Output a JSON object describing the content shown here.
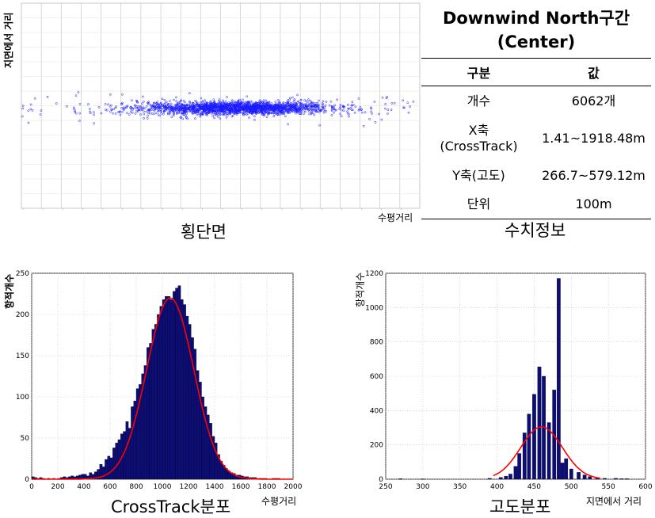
{
  "info_table": {
    "title_line1": "Downwind North구간",
    "title_line2": "(Center)",
    "header": {
      "col1": "구분",
      "col2": "값"
    },
    "rows": [
      {
        "label": "개수",
        "value": "6062개"
      },
      {
        "label": "X축\n(CrossTrack)",
        "value": "1.41~1918.48m"
      },
      {
        "label": "Y축(고도)",
        "value": "266.7~579.12m"
      },
      {
        "label": "단위",
        "value": "100m"
      }
    ]
  },
  "captions": {
    "scatter": "횡단면",
    "table": "수치정보",
    "hist_cross": "CrossTrack분포",
    "hist_alt": "고도분포"
  },
  "axis_labels": {
    "scatter_x": "수평거리",
    "scatter_y": "지면에서 거리",
    "hist_cross_x": "수평거리",
    "hist_cross_y": "항적개수",
    "hist_alt_x": "지면에서 거리",
    "hist_alt_y": "항적개수"
  },
  "colors": {
    "bar_fill": "#0d0d7a",
    "fit_curve": "#ff0000",
    "scatter_points": "#1a1aff",
    "grid": "#bfbfbf"
  },
  "chart_data": [
    {
      "type": "scatter",
      "xlabel": "수평거리",
      "ylabel": "지면에서 거리",
      "xlim": [
        0,
        1950
      ],
      "ylim": [
        0,
        900
      ],
      "grid": true,
      "point_count": 6062,
      "x_range": [
        1.41,
        1918.48
      ],
      "y_range": [
        266.7,
        579.12
      ],
      "center": {
        "x": 1050,
        "y": 440
      }
    },
    {
      "type": "bar",
      "xlabel": "수평거리",
      "ylabel": "항적개수",
      "xlim": [
        0,
        2000
      ],
      "ylim": [
        0,
        250
      ],
      "x_ticks": [
        0,
        200,
        400,
        600,
        800,
        1000,
        1200,
        1400,
        1600,
        1800,
        2000
      ],
      "y_ticks": [
        0,
        50,
        100,
        150,
        200,
        250
      ],
      "grid": true,
      "bin_width": 20,
      "bin_start": 0,
      "values": [
        3,
        2,
        1,
        2,
        1,
        0,
        1,
        0,
        1,
        0,
        1,
        2,
        3,
        2,
        3,
        4,
        3,
        4,
        5,
        6,
        6,
        4,
        8,
        6,
        9,
        12,
        18,
        15,
        24,
        28,
        26,
        38,
        44,
        48,
        55,
        58,
        70,
        62,
        88,
        95,
        110,
        115,
        128,
        138,
        160,
        165,
        182,
        188,
        200,
        210,
        218,
        222,
        222,
        218,
        228,
        232,
        235,
        218,
        212,
        198,
        188,
        172,
        158,
        132,
        118,
        100,
        88,
        78,
        68,
        52,
        44,
        30,
        22,
        17,
        13,
        10,
        8,
        7,
        5,
        5,
        4,
        3,
        3,
        2,
        2,
        2,
        1,
        1,
        1,
        1,
        0,
        0,
        1,
        1,
        1,
        0
      ],
      "fit": {
        "type": "normal",
        "mean": 1060,
        "peak": 220,
        "sd": 180
      }
    },
    {
      "type": "bar",
      "xlabel": "지면에서 거리",
      "ylabel": "항적개수",
      "xlim": [
        250,
        600
      ],
      "ylim": [
        0,
        1200
      ],
      "x_ticks": [
        250,
        300,
        350,
        400,
        450,
        500,
        550,
        600
      ],
      "y_ticks": [
        0,
        200,
        400,
        600,
        800,
        1000,
        1200
      ],
      "grid": true,
      "bars": [
        {
          "x": 270,
          "y": 3
        },
        {
          "x": 300,
          "y": 2
        },
        {
          "x": 390,
          "y": 5
        },
        {
          "x": 405,
          "y": 10
        },
        {
          "x": 412,
          "y": 18
        },
        {
          "x": 418,
          "y": 30
        },
        {
          "x": 425,
          "y": 75
        },
        {
          "x": 430,
          "y": 150
        },
        {
          "x": 437,
          "y": 270
        },
        {
          "x": 443,
          "y": 380
        },
        {
          "x": 450,
          "y": 495
        },
        {
          "x": 457,
          "y": 655
        },
        {
          "x": 463,
          "y": 600
        },
        {
          "x": 470,
          "y": 330
        },
        {
          "x": 477,
          "y": 520
        },
        {
          "x": 483,
          "y": 1170
        },
        {
          "x": 488,
          "y": 95
        },
        {
          "x": 493,
          "y": 120
        },
        {
          "x": 500,
          "y": 60
        },
        {
          "x": 510,
          "y": 40
        },
        {
          "x": 518,
          "y": 25
        },
        {
          "x": 525,
          "y": 15
        },
        {
          "x": 535,
          "y": 8
        },
        {
          "x": 545,
          "y": 5
        },
        {
          "x": 560,
          "y": 5
        },
        {
          "x": 568,
          "y": 3
        },
        {
          "x": 575,
          "y": 3
        }
      ],
      "fit": {
        "type": "normal",
        "mean": 460,
        "peak": 305,
        "sd": 28
      }
    }
  ]
}
